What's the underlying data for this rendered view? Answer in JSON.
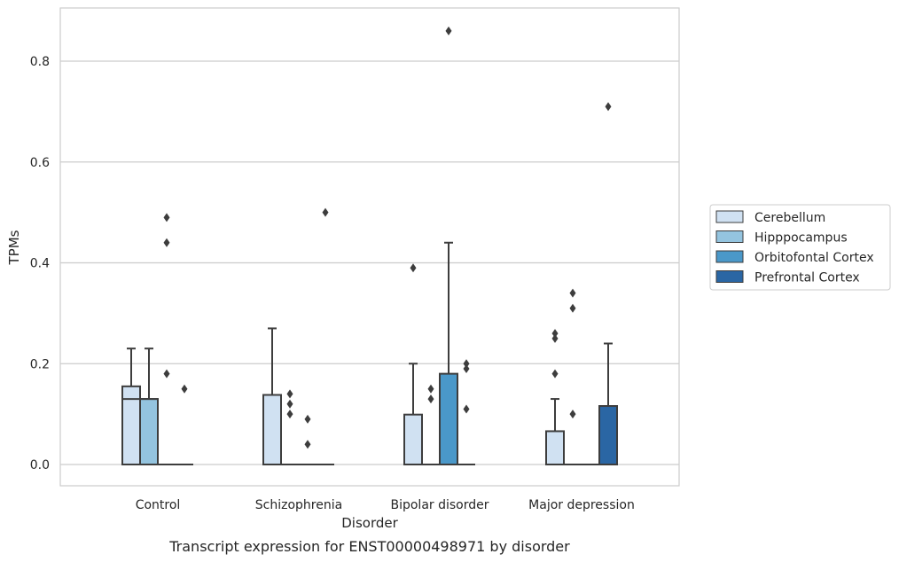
{
  "chart_data": {
    "type": "boxplot",
    "title": "",
    "caption": "Transcript expression for ENST00000498971 by disorder",
    "xlabel": "Disorder",
    "ylabel": "TPMs",
    "ylim": [
      -0.04,
      0.905
    ],
    "yticks": [
      0.0,
      0.2,
      0.4,
      0.6,
      0.8
    ],
    "ytick_labels": [
      "0.0",
      "0.2",
      "0.4",
      "0.6",
      "0.8"
    ],
    "grid": true,
    "legend_position": "right",
    "categories": [
      "Control",
      "Schizophrenia",
      "Bipolar disorder",
      "Major depression"
    ],
    "series": [
      {
        "name": "Cerebellum",
        "color": "#d0e1f2",
        "boxes": [
          {
            "q1": 0.0,
            "median": 0.13,
            "q3": 0.155,
            "whisker_low": 0.0,
            "whisker_high": 0.23,
            "outliers": []
          },
          {
            "q1": 0.0,
            "median": 0.0,
            "q3": 0.138,
            "whisker_low": 0.0,
            "whisker_high": 0.27,
            "outliers": []
          },
          {
            "q1": 0.0,
            "median": 0.0,
            "q3": 0.099,
            "whisker_low": 0.0,
            "whisker_high": 0.2,
            "outliers": [
              0.39
            ]
          },
          {
            "q1": 0.0,
            "median": 0.0,
            "q3": 0.066,
            "whisker_low": 0.0,
            "whisker_high": 0.13,
            "outliers": [
              0.18,
              0.25,
              0.26
            ]
          }
        ]
      },
      {
        "name": "Hipppocampus",
        "color": "#94c4df",
        "boxes": [
          {
            "q1": 0.0,
            "median": 0.13,
            "q3": 0.13,
            "whisker_low": 0.0,
            "whisker_high": 0.23,
            "outliers": []
          },
          {
            "q1": 0.0,
            "median": 0.0,
            "q3": 0.0,
            "whisker_low": 0.0,
            "whisker_high": 0.0,
            "outliers": [
              0.1,
              0.12,
              0.14
            ]
          },
          {
            "q1": 0.0,
            "median": 0.0,
            "q3": 0.0,
            "whisker_low": 0.0,
            "whisker_high": 0.0,
            "outliers": [
              0.13,
              0.15
            ]
          },
          {
            "q1": 0.0,
            "median": 0.0,
            "q3": 0.0,
            "whisker_low": 0.0,
            "whisker_high": 0.0,
            "outliers": [
              0.1,
              0.31,
              0.34
            ]
          }
        ]
      },
      {
        "name": "Orbitofontal Cortex",
        "color": "#4a98c9",
        "boxes": [
          {
            "q1": 0.0,
            "median": 0.0,
            "q3": 0.0,
            "whisker_low": 0.0,
            "whisker_high": 0.0,
            "outliers": [
              0.18,
              0.44,
              0.49
            ]
          },
          {
            "q1": 0.0,
            "median": 0.0,
            "q3": 0.0,
            "whisker_low": 0.0,
            "whisker_high": 0.0,
            "outliers": [
              0.04,
              0.09
            ]
          },
          {
            "q1": 0.0,
            "median": 0.0,
            "q3": 0.18,
            "whisker_low": 0.0,
            "whisker_high": 0.44,
            "outliers": [
              0.86
            ]
          },
          {
            "q1": 0.0,
            "median": 0.0,
            "q3": 0.0,
            "whisker_low": 0.0,
            "whisker_high": 0.0,
            "outliers": []
          }
        ]
      },
      {
        "name": "Prefrontal Cortex",
        "color": "#2a66a4",
        "boxes": [
          {
            "q1": 0.0,
            "median": 0.0,
            "q3": 0.0,
            "whisker_low": 0.0,
            "whisker_high": 0.0,
            "outliers": [
              0.15
            ]
          },
          {
            "q1": 0.0,
            "median": 0.0,
            "q3": 0.0,
            "whisker_low": 0.0,
            "whisker_high": 0.0,
            "outliers": [
              0.5
            ]
          },
          {
            "q1": 0.0,
            "median": 0.0,
            "q3": 0.0,
            "whisker_low": 0.0,
            "whisker_high": 0.0,
            "outliers": [
              0.11,
              0.19,
              0.2
            ]
          },
          {
            "q1": 0.0,
            "median": 0.0,
            "q3": 0.116,
            "whisker_low": 0.0,
            "whisker_high": 0.24,
            "outliers": [
              0.71
            ]
          }
        ]
      }
    ]
  }
}
